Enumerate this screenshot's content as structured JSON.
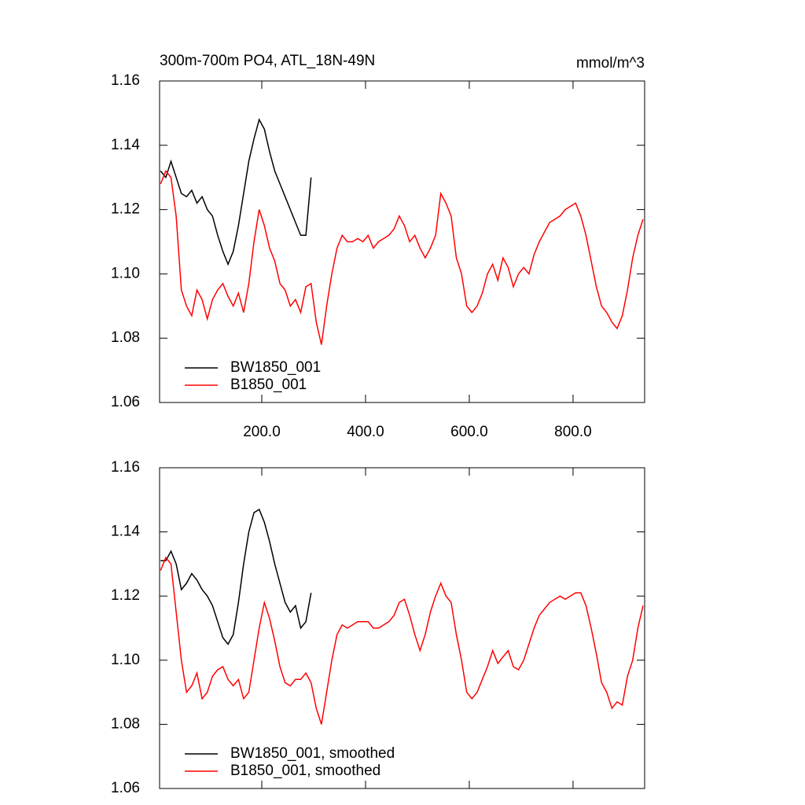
{
  "chart_data": [
    {
      "type": "line",
      "title": "300m-700m PO4, ATL_18N-49N",
      "units": "mmol/m^3",
      "x": [
        5,
        15,
        25,
        35,
        45,
        55,
        65,
        75,
        85,
        95,
        105,
        115,
        125,
        135,
        145,
        155,
        165,
        175,
        185,
        195,
        205,
        215,
        225,
        235,
        245,
        255,
        265,
        275,
        285,
        295,
        305,
        315,
        325,
        335,
        345,
        355,
        365,
        375,
        385,
        395,
        405,
        415,
        425,
        435,
        445,
        455,
        465,
        475,
        485,
        495,
        505,
        515,
        525,
        535,
        545,
        555,
        565,
        575,
        585,
        595,
        605,
        615,
        625,
        635,
        645,
        655,
        665,
        675,
        685,
        695,
        705,
        715,
        725,
        735,
        745,
        755,
        765,
        775,
        785,
        795,
        805,
        815,
        825,
        835,
        845,
        855,
        865,
        875,
        885,
        895,
        905,
        915,
        925,
        935
      ],
      "series": [
        {
          "name": "BW1850_001",
          "color": "#000000",
          "values": [
            1.132,
            1.13,
            1.135,
            1.13,
            1.125,
            1.124,
            1.126,
            1.122,
            1.124,
            1.12,
            1.118,
            1.112,
            1.107,
            1.103,
            1.107,
            1.115,
            1.125,
            1.135,
            1.142,
            1.148,
            1.145,
            1.138,
            1.132,
            1.128,
            1.124,
            1.12,
            1.116,
            1.112,
            1.112,
            1.13,
            null,
            null,
            null,
            null,
            null,
            null,
            null,
            null,
            null,
            null,
            null,
            null,
            null,
            null,
            null,
            null,
            null,
            null,
            null,
            null,
            null,
            null,
            null,
            null,
            null,
            null,
            null,
            null,
            null,
            null,
            null,
            null,
            null,
            null,
            null,
            null,
            null,
            null,
            null,
            null,
            null,
            null,
            null,
            null,
            null,
            null,
            null,
            null,
            null,
            null,
            null,
            null,
            null,
            null,
            null,
            null,
            null,
            null,
            null,
            null,
            null,
            null,
            null,
            null
          ]
        },
        {
          "name": "B1850_001",
          "color": "#ff0000",
          "values": [
            1.128,
            1.132,
            1.13,
            1.118,
            1.095,
            1.09,
            1.087,
            1.095,
            1.092,
            1.086,
            1.092,
            1.095,
            1.097,
            1.093,
            1.09,
            1.094,
            1.088,
            1.097,
            1.11,
            1.12,
            1.115,
            1.108,
            1.104,
            1.097,
            1.095,
            1.09,
            1.092,
            1.088,
            1.096,
            1.097,
            1.085,
            1.078,
            1.09,
            1.1,
            1.108,
            1.112,
            1.11,
            1.11,
            1.111,
            1.11,
            1.112,
            1.108,
            1.11,
            1.111,
            1.112,
            1.114,
            1.118,
            1.115,
            1.11,
            1.112,
            1.108,
            1.105,
            1.108,
            1.112,
            1.125,
            1.122,
            1.118,
            1.105,
            1.1,
            1.09,
            1.088,
            1.09,
            1.094,
            1.1,
            1.103,
            1.098,
            1.105,
            1.102,
            1.096,
            1.1,
            1.102,
            1.1,
            1.106,
            1.11,
            1.113,
            1.116,
            1.117,
            1.118,
            1.12,
            1.121,
            1.122,
            1.118,
            1.112,
            1.104,
            1.096,
            1.09,
            1.088,
            1.085,
            1.083,
            1.087,
            1.095,
            1.105,
            1.112,
            1.117
          ]
        }
      ],
      "xlim": [
        3,
        938
      ],
      "xticks": [
        {
          "value": 200,
          "label": "200.0"
        },
        {
          "value": 400,
          "label": "400.0"
        },
        {
          "value": 600,
          "label": "600.0"
        },
        {
          "value": 800,
          "label": "800.0"
        }
      ],
      "ylim": [
        1.06,
        1.16
      ],
      "yticks": [
        1.06,
        1.08,
        {
          "value": 1.1,
          "label": "1.10"
        },
        1.12,
        1.14,
        1.16
      ],
      "legend": "lower left"
    },
    {
      "type": "line",
      "x": [
        5,
        15,
        25,
        35,
        45,
        55,
        65,
        75,
        85,
        95,
        105,
        115,
        125,
        135,
        145,
        155,
        165,
        175,
        185,
        195,
        205,
        215,
        225,
        235,
        245,
        255,
        265,
        275,
        285,
        295,
        305,
        315,
        325,
        335,
        345,
        355,
        365,
        375,
        385,
        395,
        405,
        415,
        425,
        435,
        445,
        455,
        465,
        475,
        485,
        495,
        505,
        515,
        525,
        535,
        545,
        555,
        565,
        575,
        585,
        595,
        605,
        615,
        625,
        635,
        645,
        655,
        665,
        675,
        685,
        695,
        705,
        715,
        725,
        735,
        745,
        755,
        765,
        775,
        785,
        795,
        805,
        815,
        825,
        835,
        845,
        855,
        865,
        875,
        885,
        895,
        905,
        915,
        925,
        935
      ],
      "series": [
        {
          "name": "BW1850_001, smoothed",
          "color": "#000000",
          "values": [
            1.131,
            1.131,
            1.134,
            1.13,
            1.122,
            1.124,
            1.127,
            1.125,
            1.122,
            1.12,
            1.117,
            1.112,
            1.107,
            1.105,
            1.108,
            1.118,
            1.13,
            1.14,
            1.146,
            1.147,
            1.143,
            1.137,
            1.13,
            1.124,
            1.118,
            1.115,
            1.117,
            1.11,
            1.112,
            1.121,
            null,
            null,
            null,
            null,
            null,
            null,
            null,
            null,
            null,
            null,
            null,
            null,
            null,
            null,
            null,
            null,
            null,
            null,
            null,
            null,
            null,
            null,
            null,
            null,
            null,
            null,
            null,
            null,
            null,
            null,
            null,
            null,
            null,
            null,
            null,
            null,
            null,
            null,
            null,
            null,
            null,
            null,
            null,
            null,
            null,
            null,
            null,
            null,
            null,
            null,
            null,
            null,
            null,
            null,
            null,
            null,
            null,
            null,
            null,
            null,
            null,
            null,
            null,
            null
          ]
        },
        {
          "name": "B1850_001, smoothed",
          "color": "#ff0000",
          "values": [
            1.128,
            1.132,
            1.13,
            1.115,
            1.1,
            1.09,
            1.092,
            1.096,
            1.088,
            1.09,
            1.095,
            1.097,
            1.098,
            1.094,
            1.092,
            1.094,
            1.088,
            1.09,
            1.1,
            1.11,
            1.118,
            1.113,
            1.106,
            1.098,
            1.093,
            1.092,
            1.094,
            1.094,
            1.096,
            1.093,
            1.085,
            1.08,
            1.09,
            1.1,
            1.108,
            1.111,
            1.11,
            1.111,
            1.112,
            1.112,
            1.112,
            1.11,
            1.11,
            1.111,
            1.112,
            1.114,
            1.118,
            1.119,
            1.114,
            1.108,
            1.103,
            1.108,
            1.115,
            1.12,
            1.124,
            1.12,
            1.118,
            1.108,
            1.1,
            1.09,
            1.088,
            1.09,
            1.094,
            1.098,
            1.103,
            1.099,
            1.101,
            1.103,
            1.098,
            1.097,
            1.1,
            1.105,
            1.11,
            1.114,
            1.116,
            1.118,
            1.119,
            1.12,
            1.119,
            1.12,
            1.121,
            1.121,
            1.117,
            1.11,
            1.102,
            1.093,
            1.09,
            1.085,
            1.087,
            1.086,
            1.095,
            1.1,
            1.11,
            1.117
          ]
        }
      ],
      "xlim": [
        3,
        938
      ],
      "xticks": [
        200,
        400,
        600,
        800
      ],
      "xtick_labels": false,
      "ylim": [
        1.06,
        1.16
      ],
      "yticks": [
        1.06,
        1.08,
        {
          "value": 1.1,
          "label": "1.10"
        },
        1.12,
        1.14,
        1.16
      ],
      "legend": "lower left"
    }
  ]
}
